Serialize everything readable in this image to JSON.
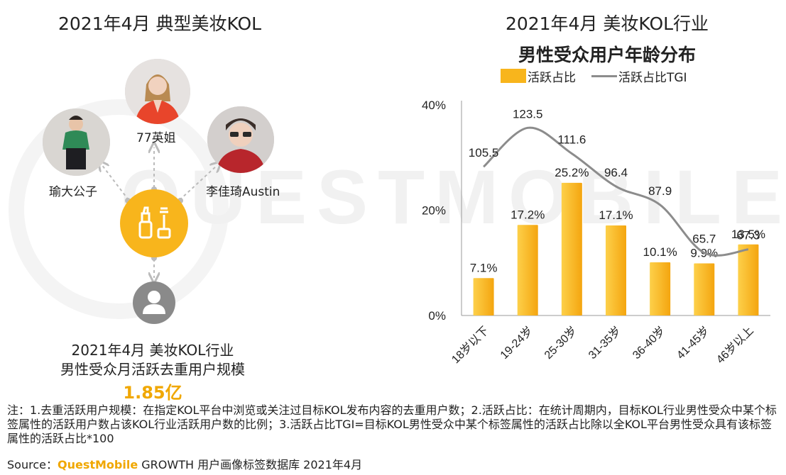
{
  "watermark": "QUESTMOBILE",
  "left": {
    "title": "2021年4月 典型美妆KOL",
    "kols": [
      {
        "name": "77英姐",
        "avatar_icon": "portrait-woman-icon"
      },
      {
        "name": "瑜大公子",
        "avatar_icon": "portrait-man-icon"
      },
      {
        "name": "李佳琦Austin",
        "avatar_icon": "portrait-man-sunglasses-icon"
      }
    ],
    "hub_icon": "makeup-icon",
    "user_icon": "user-icon",
    "caption_line1": "2021年4月 美妆KOL行业",
    "caption_line2": "男性受众月活跃去重用户规模",
    "scale_value": "1.85亿"
  },
  "right": {
    "title_line1": "2021年4月 美妆KOL行业",
    "title_line2": "男性受众用户年龄分布"
  },
  "chart_data": {
    "type": "bar",
    "categories": [
      "18岁以下",
      "19-24岁",
      "25-30岁",
      "31-35岁",
      "36-40岁",
      "41-45岁",
      "46岁以上"
    ],
    "series": [
      {
        "name": "活跃占比",
        "type": "bar",
        "values": [
          7.1,
          17.2,
          25.2,
          17.1,
          10.1,
          9.9,
          13.5
        ],
        "labels": [
          "7.1%",
          "17.2%",
          "25.2%",
          "17.1%",
          "10.1%",
          "9.9%",
          "13.5%"
        ],
        "color": "#f8b51c"
      },
      {
        "name": "活跃占比TGI",
        "type": "line",
        "values": [
          105.5,
          123.5,
          111.6,
          96.4,
          87.9,
          65.7,
          67.3
        ],
        "labels": [
          "105.5",
          "123.5",
          "111.6",
          "96.4",
          "87.9",
          "65.7",
          "67.3"
        ],
        "color": "#8c8c8c"
      }
    ],
    "y_ticks": [
      "0%",
      "20%",
      "40%"
    ],
    "ylim": [
      0,
      40
    ],
    "legend_position": "top"
  },
  "notes": "注：1.去重活跃用户规模：在指定KOL平台中浏览或关注过目标KOL发布内容的去重用户数；2.活跃占比：在统计周期内，目标KOL行业男性受众中某个标签属性的活跃用户数占该KOL行业活跃用户数的比例；3.活跃占比TGI=目标KOL男性受众中某个标签属性的活跃占比除以全KOL平台男性受众具有该标签属性的活跃占比*100",
  "source": {
    "label": "Source：",
    "brand": "QuestMobile",
    "text": " GROWTH 用户画像标签数据库 2021年4月"
  }
}
